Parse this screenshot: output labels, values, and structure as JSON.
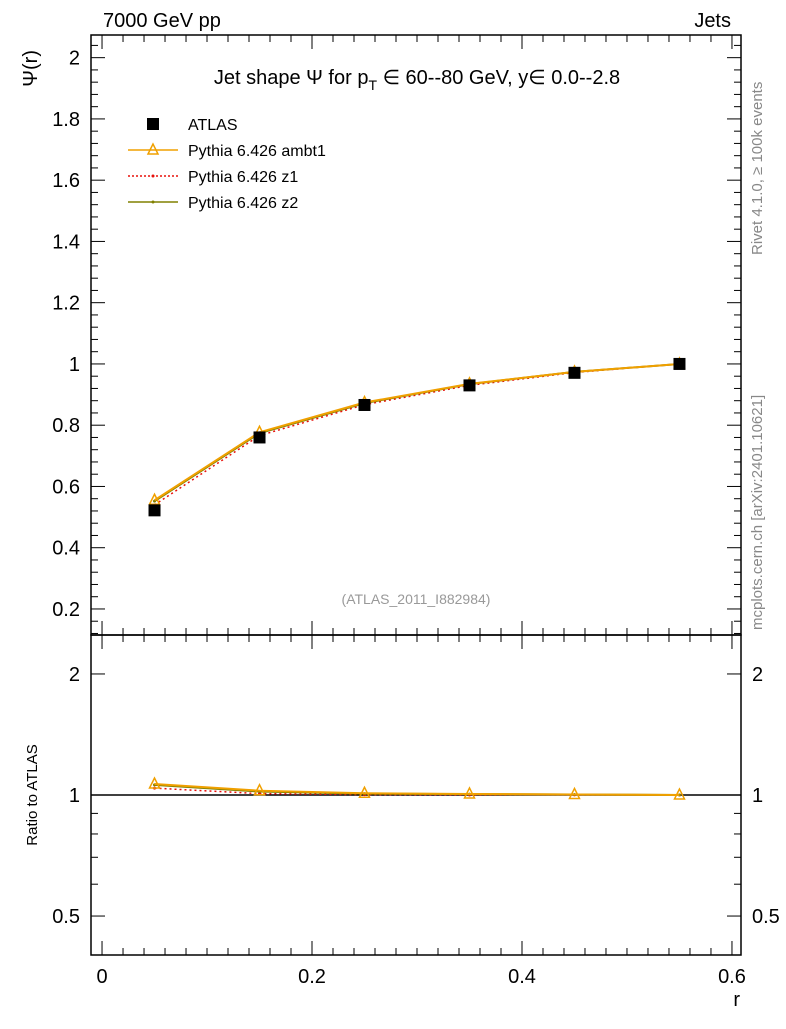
{
  "header": {
    "left": "7000 GeV pp",
    "right": "Jets"
  },
  "side_labels": {
    "rivet": "Rivet 4.1.0, ≥ 100k events",
    "mcplots": "mcplots.cern.ch [arXiv:2401.10621]"
  },
  "watermark": "(ATLAS_2011_I882984)",
  "chart_data": {
    "type": "line",
    "title": "Jet shape Ψ for p_T ∈ 60--80 GeV, y ∈ 0.0--2.8",
    "title_parts": {
      "a": "Jet shape Ψ for p",
      "sub": "T",
      "b": " ∈ 60--80 GeV, y∈ 0.0--2.8"
    },
    "xlabel": "r",
    "ylabel": "Ψ(r)",
    "ratio_ylabel": "Ratio to ATLAS",
    "xlim": [
      -0.0105,
      0.6086
    ],
    "ylim": [
      0.115,
      2.074
    ],
    "ratio_ylim": [
      0.4,
      2.5
    ],
    "ratio_scale": "log",
    "xticks": [
      0,
      0.2,
      0.4,
      0.6
    ],
    "xtick_labels": [
      "0",
      "0.2",
      "0.4",
      "0.6"
    ],
    "yticks": [
      0.2,
      0.4,
      0.6,
      0.8,
      1,
      1.2,
      1.4,
      1.6,
      1.8,
      2
    ],
    "ytick_labels": [
      "0.2",
      "0.4",
      "0.6",
      "0.8",
      "1",
      "1.2",
      "1.4",
      "1.6",
      "1.8",
      "2"
    ],
    "ratio_yticks": [
      0.5,
      1,
      2
    ],
    "ratio_ytick_labels": [
      "0.5",
      "1",
      "2"
    ],
    "legend_position": "top-left",
    "x": [
      0.05,
      0.15,
      0.25,
      0.35,
      0.45,
      0.55
    ],
    "series": [
      {
        "name": "ATLAS",
        "color": "#000000",
        "style": "marker",
        "values": [
          0.522,
          0.76,
          0.866,
          0.93,
          0.971,
          1.0
        ],
        "ratio": [
          1,
          1,
          1,
          1,
          1,
          1
        ]
      },
      {
        "name": "Pythia 6.426 ambt1",
        "color": "#f0a000",
        "style": "solid-triangle",
        "values": [
          0.555,
          0.777,
          0.874,
          0.935,
          0.974,
          1.0
        ],
        "ratio": [
          1.065,
          1.025,
          1.01,
          1.006,
          1.003,
          1.0
        ]
      },
      {
        "name": "Pythia 6.426 z1",
        "color": "#e8100a",
        "style": "dotted",
        "values": [
          0.54,
          0.766,
          0.867,
          0.93,
          0.972,
          1.0
        ],
        "ratio": [
          1.04,
          1.008,
          1.002,
          1.0,
          1.001,
          1.0
        ]
      },
      {
        "name": "Pythia 6.426 z2",
        "color": "#808000",
        "style": "solid",
        "values": [
          0.552,
          0.774,
          0.872,
          0.934,
          0.974,
          1.0
        ],
        "ratio": [
          1.06,
          1.02,
          1.008,
          1.005,
          1.003,
          1.0
        ]
      }
    ]
  }
}
